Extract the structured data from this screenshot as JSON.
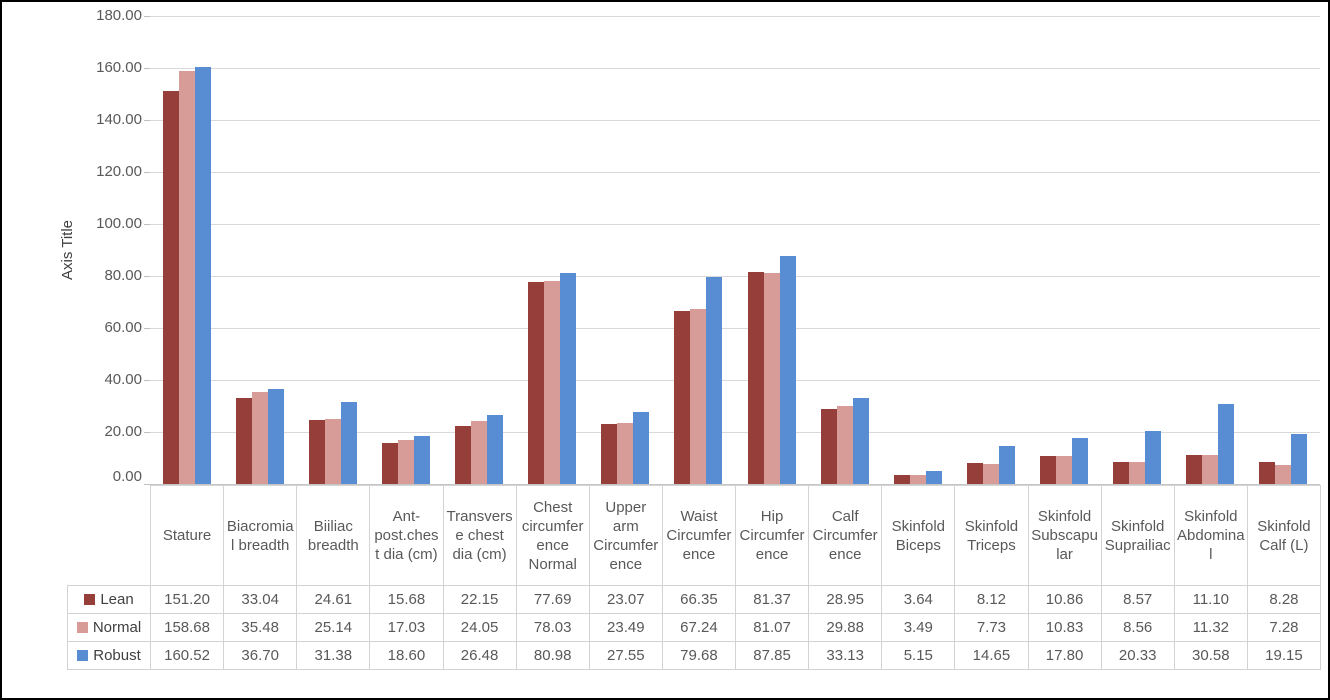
{
  "chart_data": {
    "type": "bar",
    "title": "",
    "xlabel": "",
    "ylabel": "Axis Title",
    "ylim": [
      0,
      180
    ],
    "ytick_step": 20,
    "ytick_label_format": "two_decimals",
    "grid": true,
    "legend_position": "data-table-left",
    "categories": [
      "Stature",
      "Biacromial breadth",
      "Biiliac breadth",
      "Ant-post.chest dia (cm)",
      "Transverse chest dia (cm)",
      "Chest circumference Normal",
      "Upper arm Circumference",
      "Waist Circumference",
      "Hip Circumference",
      "Calf Circumference",
      "Skinfold Biceps",
      "Skinfold Triceps",
      "Skinfold Subscapular",
      "Skinfold Suprailiac",
      "Skinfold Abdominal",
      "Skinfold Calf (L)"
    ],
    "series": [
      {
        "name": "Lean",
        "color": "#963E39",
        "values": [
          151.2,
          33.04,
          24.61,
          15.68,
          22.15,
          77.69,
          23.07,
          66.35,
          81.37,
          28.95,
          3.64,
          8.12,
          10.86,
          8.57,
          11.1,
          8.28
        ]
      },
      {
        "name": "Normal",
        "color": "#D79B98",
        "values": [
          158.68,
          35.48,
          25.14,
          17.03,
          24.05,
          78.03,
          23.49,
          67.24,
          81.07,
          29.88,
          3.49,
          7.73,
          10.83,
          8.56,
          11.32,
          7.28
        ]
      },
      {
        "name": "Robust",
        "color": "#588CD3",
        "values": [
          160.52,
          36.7,
          31.38,
          18.6,
          26.48,
          80.98,
          27.55,
          79.68,
          87.85,
          33.13,
          5.15,
          14.65,
          17.8,
          20.33,
          30.58,
          19.15
        ]
      }
    ]
  },
  "colors": {
    "background": "#FFFFFF",
    "frame_border": "#000000",
    "gridline": "#D9D9D9",
    "axis_line": "#C6C6C6",
    "tick_mark": "#BFBFBF",
    "tick_text": "#595959",
    "axis_title_text": "#404040",
    "table_border": "#D3D3D3",
    "table_text": "#595959",
    "legend_text": "#404040"
  }
}
